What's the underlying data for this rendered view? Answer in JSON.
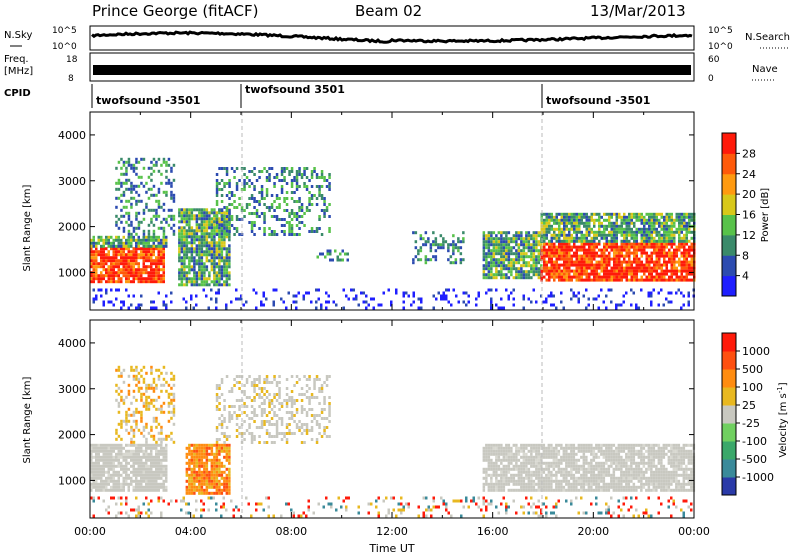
{
  "header": {
    "station": "Prince George (fitACF)",
    "beam": "Beam 02",
    "date": "13/Mar/2013"
  },
  "top_panels": {
    "nsky_label": "N.Sky",
    "nsearch_label": "N.Search",
    "noise_ticks_left": [
      "10^5",
      "10^0"
    ],
    "noise_ticks_right": [
      "10^5",
      "10^0"
    ],
    "freq_label_1": "Freq.",
    "freq_label_2": "[MHz]",
    "freq_ticks": [
      "18",
      "8"
    ],
    "nave_label": "Nave",
    "nave_ticks": [
      "60",
      "0"
    ],
    "cpid_label": "CPID",
    "cpid_segments": [
      "twofsound -3501",
      "twofsound 3501",
      "twofsound -3501"
    ]
  },
  "chart_data": [
    {
      "type": "heatmap",
      "name": "Power",
      "ylabel": "Slant Range [km]",
      "xlabel": "Time UT",
      "y_ticks": [
        "1000",
        "2000",
        "3000",
        "4000"
      ],
      "x_ticks": [
        "00:00",
        "04:00",
        "08:00",
        "12:00",
        "16:00",
        "20:00",
        "00:00"
      ],
      "xlim_hours": [
        0,
        24
      ],
      "ylim_km": [
        180,
        4500
      ],
      "colorbar_label": "Power [dB]",
      "colorbar_ticks": [
        "4",
        "8",
        "12",
        "16",
        "20",
        "24",
        "28"
      ],
      "colorbar_colors": [
        "#1f1fff",
        "#2c4bb0",
        "#3a8a6a",
        "#58c24a",
        "#d8c81a",
        "#ff9a10",
        "#ff5a0a",
        "#ff1a0a"
      ],
      "regions": [
        {
          "t0": 0.0,
          "t1": 2.9,
          "r0": 800,
          "r1": 1550,
          "level": "high"
        },
        {
          "t0": 0.0,
          "t1": 3.0,
          "r0": 1550,
          "r1": 1800,
          "level": "mid"
        },
        {
          "t0": 1.0,
          "t1": 3.3,
          "r0": 1800,
          "r1": 3500,
          "level": "sparse"
        },
        {
          "t0": 3.5,
          "t1": 5.5,
          "r0": 700,
          "r1": 2400,
          "level": "mid"
        },
        {
          "t0": 5.0,
          "t1": 9.5,
          "r0": 1800,
          "r1": 3300,
          "level": "sparse"
        },
        {
          "t0": 9.0,
          "t1": 10.3,
          "r0": 1300,
          "r1": 1500,
          "level": "sparse"
        },
        {
          "t0": 12.8,
          "t1": 14.8,
          "r0": 1200,
          "r1": 1900,
          "level": "sparse"
        },
        {
          "t0": 15.6,
          "t1": 17.9,
          "r0": 900,
          "r1": 1900,
          "level": "mid"
        },
        {
          "t0": 17.9,
          "t1": 24.0,
          "r0": 800,
          "r1": 1650,
          "level": "high"
        },
        {
          "t0": 17.9,
          "t1": 24.0,
          "r0": 1650,
          "r1": 2300,
          "level": "mid"
        },
        {
          "t0": 0.0,
          "t1": 24.0,
          "r0": 200,
          "r1": 650,
          "level": "speckle"
        }
      ]
    },
    {
      "type": "heatmap",
      "name": "Velocity",
      "ylabel": "Slant Range [km]",
      "xlabel": "Time UT",
      "y_ticks": [
        "1000",
        "2000",
        "3000",
        "4000"
      ],
      "x_ticks": [
        "00:00",
        "04:00",
        "08:00",
        "12:00",
        "16:00",
        "20:00",
        "00:00"
      ],
      "xlim_hours": [
        0,
        24
      ],
      "ylim_km": [
        180,
        4500
      ],
      "colorbar_label": "Velocity [m s",
      "colorbar_label_sup": "-1",
      "colorbar_label_end": "]",
      "colorbar_ticks": [
        "1000",
        "500",
        "100",
        "25",
        "-25",
        "-100",
        "-500",
        "-1000"
      ],
      "colorbar_colors": [
        "#2a3aa8",
        "#3a8a9a",
        "#3aa86a",
        "#70d060",
        "#c8c8c0",
        "#e8b820",
        "#ff8c10",
        "#ff5010",
        "#ff1a0a"
      ],
      "regions": [
        {
          "t0": 0.0,
          "t1": 3.0,
          "r0": 800,
          "r1": 1800,
          "level": "grey"
        },
        {
          "t0": 3.8,
          "t1": 5.5,
          "r0": 700,
          "r1": 1800,
          "level": "orange"
        },
        {
          "t0": 5.0,
          "t1": 9.5,
          "r0": 1800,
          "r1": 3300,
          "level": "greysparse"
        },
        {
          "t0": 15.6,
          "t1": 24.0,
          "r0": 800,
          "r1": 1800,
          "level": "grey"
        },
        {
          "t0": 1.0,
          "t1": 3.3,
          "r0": 1800,
          "r1": 3500,
          "level": "sparse"
        },
        {
          "t0": 0.0,
          "t1": 24.0,
          "r0": 200,
          "r1": 650,
          "level": "speckle"
        }
      ]
    }
  ]
}
